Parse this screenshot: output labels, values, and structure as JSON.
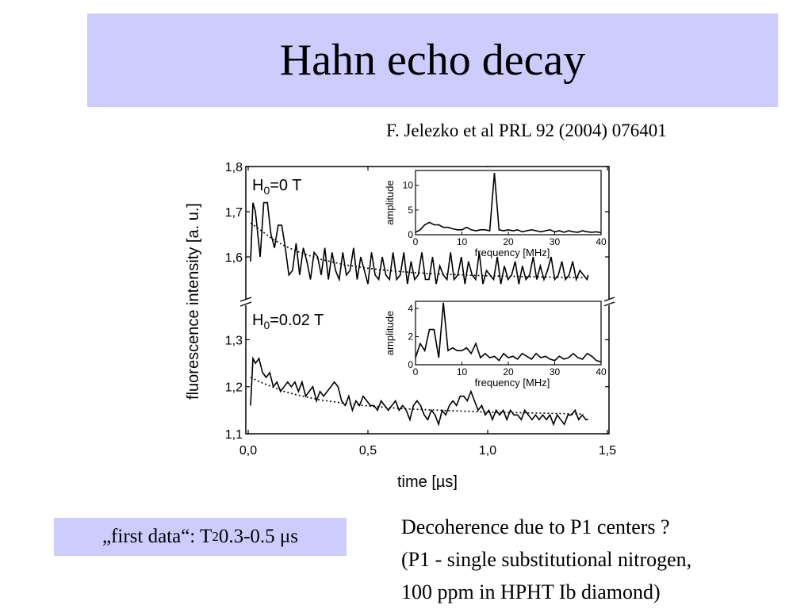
{
  "slide": {
    "title": "Hahn echo decay",
    "citation": "F. Jelezko et al PRL 92 (2004) 076401",
    "note": {
      "prefix": "„first data“: T",
      "sub": "2",
      "suffix": " 0.3-0.5 μs"
    },
    "decoherence_lines": [
      "Decoherence due to P1 centers ?",
      "(P1 - single substitutional nitrogen,",
      "100 ppm in HPHT Ib diamond)"
    ]
  },
  "chart_data": [
    {
      "type": "line",
      "panel": "upper",
      "label": "H0=0 T",
      "label_main": "H",
      "label_sub": "0",
      "label_rest": "=0 T",
      "xlabel": "time [µs]",
      "ylabel": "fluorescence intensity [a. u.]",
      "xlim": [
        0,
        1.5
      ],
      "ylim": [
        1.5,
        1.8
      ],
      "xticks": [
        "0,0",
        "0,5",
        "1,0",
        "1,5"
      ],
      "yticks": [
        "1,6",
        "1,7",
        "1,8"
      ],
      "series": [
        {
          "style": "solid",
          "x": [
            0.01,
            0.02,
            0.03,
            0.05,
            0.065,
            0.08,
            0.095,
            0.11,
            0.125,
            0.14,
            0.155,
            0.17,
            0.185,
            0.2,
            0.215,
            0.23,
            0.245,
            0.26,
            0.275,
            0.29,
            0.305,
            0.32,
            0.335,
            0.35,
            0.365,
            0.38,
            0.395,
            0.41,
            0.425,
            0.44,
            0.455,
            0.47,
            0.485,
            0.5,
            0.515,
            0.53,
            0.545,
            0.56,
            0.575,
            0.59,
            0.605,
            0.62,
            0.635,
            0.65,
            0.665,
            0.68,
            0.695,
            0.71,
            0.725,
            0.74,
            0.755,
            0.77,
            0.785,
            0.8,
            0.815,
            0.83,
            0.845,
            0.86,
            0.875,
            0.89,
            0.905,
            0.92,
            0.935,
            0.95,
            0.965,
            0.98,
            0.995,
            1.01,
            1.025,
            1.04,
            1.055,
            1.07,
            1.085,
            1.1,
            1.115,
            1.13,
            1.145,
            1.16,
            1.175,
            1.19,
            1.205,
            1.22,
            1.235,
            1.25,
            1.265,
            1.28,
            1.295,
            1.31,
            1.325,
            1.34,
            1.355,
            1.37,
            1.385,
            1.4,
            1.415,
            1.42
          ],
          "y": [
            1.59,
            1.72,
            1.7,
            1.6,
            1.72,
            1.72,
            1.65,
            1.62,
            1.67,
            1.67,
            1.62,
            1.56,
            1.57,
            1.63,
            1.56,
            1.62,
            1.59,
            1.55,
            1.61,
            1.6,
            1.56,
            1.62,
            1.55,
            1.61,
            1.57,
            1.55,
            1.61,
            1.56,
            1.57,
            1.62,
            1.55,
            1.6,
            1.57,
            1.54,
            1.61,
            1.56,
            1.55,
            1.6,
            1.56,
            1.55,
            1.61,
            1.55,
            1.56,
            1.61,
            1.54,
            1.59,
            1.55,
            1.56,
            1.61,
            1.55,
            1.55,
            1.6,
            1.54,
            1.58,
            1.56,
            1.55,
            1.61,
            1.55,
            1.56,
            1.6,
            1.54,
            1.59,
            1.56,
            1.55,
            1.61,
            1.54,
            1.57,
            1.56,
            1.55,
            1.6,
            1.54,
            1.58,
            1.55,
            1.56,
            1.59,
            1.54,
            1.58,
            1.55,
            1.56,
            1.6,
            1.55,
            1.58,
            1.55,
            1.57,
            1.6,
            1.55,
            1.56,
            1.59,
            1.55,
            1.56,
            1.59,
            1.55,
            1.57,
            1.56,
            1.55,
            1.56
          ]
        },
        {
          "style": "dotted",
          "x": [
            0.01,
            0.05,
            0.1,
            0.15,
            0.2,
            0.3,
            0.4,
            0.5,
            0.6,
            0.7,
            0.8,
            0.9,
            1.0,
            1.1,
            1.2,
            1.3,
            1.4
          ],
          "y": [
            1.675,
            1.66,
            1.64,
            1.625,
            1.613,
            1.595,
            1.583,
            1.575,
            1.569,
            1.565,
            1.562,
            1.56,
            1.558,
            1.557,
            1.556,
            1.555,
            1.555
          ]
        }
      ]
    },
    {
      "type": "line",
      "panel": "lower",
      "label": "H0=0.02 T",
      "label_main": "H",
      "label_sub": "0",
      "label_rest": "=0.02 T",
      "xlim": [
        0,
        1.5
      ],
      "ylim": [
        1.1,
        1.38
      ],
      "yticks": [
        "1,1",
        "1,2",
        "1,3"
      ],
      "series": [
        {
          "style": "solid",
          "x": [
            0.01,
            0.02,
            0.03,
            0.045,
            0.06,
            0.075,
            0.09,
            0.105,
            0.12,
            0.135,
            0.15,
            0.165,
            0.18,
            0.195,
            0.21,
            0.225,
            0.24,
            0.255,
            0.27,
            0.285,
            0.3,
            0.315,
            0.33,
            0.345,
            0.36,
            0.375,
            0.39,
            0.405,
            0.42,
            0.435,
            0.45,
            0.465,
            0.48,
            0.495,
            0.51,
            0.525,
            0.54,
            0.555,
            0.57,
            0.585,
            0.6,
            0.615,
            0.63,
            0.645,
            0.66,
            0.675,
            0.69,
            0.705,
            0.72,
            0.735,
            0.75,
            0.765,
            0.78,
            0.795,
            0.81,
            0.825,
            0.84,
            0.855,
            0.87,
            0.885,
            0.9,
            0.915,
            0.93,
            0.945,
            0.96,
            0.975,
            0.99,
            1.005,
            1.02,
            1.035,
            1.05,
            1.065,
            1.08,
            1.095,
            1.11,
            1.125,
            1.14,
            1.155,
            1.17,
            1.185,
            1.2,
            1.215,
            1.23,
            1.245,
            1.26,
            1.275,
            1.29,
            1.305,
            1.32,
            1.335,
            1.35,
            1.365,
            1.38,
            1.395,
            1.41,
            1.42
          ],
          "y": [
            1.16,
            1.26,
            1.25,
            1.26,
            1.23,
            1.22,
            1.23,
            1.2,
            1.21,
            1.19,
            1.2,
            1.21,
            1.2,
            1.21,
            1.19,
            1.21,
            1.18,
            1.19,
            1.2,
            1.17,
            1.19,
            1.18,
            1.19,
            1.2,
            1.21,
            1.2,
            1.17,
            1.16,
            1.18,
            1.15,
            1.17,
            1.16,
            1.18,
            1.17,
            1.16,
            1.16,
            1.15,
            1.17,
            1.16,
            1.15,
            1.16,
            1.17,
            1.15,
            1.16,
            1.15,
            1.13,
            1.16,
            1.17,
            1.16,
            1.14,
            1.13,
            1.15,
            1.14,
            1.12,
            1.15,
            1.14,
            1.16,
            1.17,
            1.16,
            1.18,
            1.18,
            1.17,
            1.19,
            1.17,
            1.15,
            1.16,
            1.14,
            1.15,
            1.13,
            1.15,
            1.14,
            1.15,
            1.13,
            1.15,
            1.14,
            1.14,
            1.13,
            1.15,
            1.14,
            1.13,
            1.14,
            1.13,
            1.14,
            1.13,
            1.14,
            1.12,
            1.14,
            1.13,
            1.12,
            1.14,
            1.14,
            1.15,
            1.13,
            1.14,
            1.13,
            1.13
          ]
        },
        {
          "style": "dotted",
          "x": [
            0.01,
            0.05,
            0.1,
            0.15,
            0.2,
            0.3,
            0.4,
            0.5,
            0.6,
            0.7,
            0.8,
            0.9,
            1.0,
            1.1,
            1.2,
            1.3,
            1.4
          ],
          "y": [
            1.22,
            1.21,
            1.2,
            1.19,
            1.183,
            1.172,
            1.165,
            1.159,
            1.155,
            1.152,
            1.15,
            1.148,
            1.146,
            1.145,
            1.144,
            1.143,
            1.142
          ]
        }
      ]
    },
    {
      "type": "line",
      "panel": "inset-upper",
      "xlabel": "frequency [MHz]",
      "ylabel": "amplitude",
      "xlim": [
        0,
        40
      ],
      "ylim": [
        0,
        13
      ],
      "xticks": [
        "0",
        "10",
        "20",
        "30",
        "40"
      ],
      "yticks": [
        "0",
        "5",
        "10"
      ],
      "series": [
        {
          "style": "solid",
          "x": [
            0,
            1,
            2,
            3,
            4,
            5,
            6,
            7,
            8,
            9,
            10,
            11,
            12,
            13,
            14,
            15,
            16,
            17,
            18,
            19,
            20,
            21,
            22,
            23,
            24,
            25,
            26,
            27,
            28,
            29,
            30,
            31,
            32,
            33,
            34,
            35,
            36,
            37,
            38,
            39,
            40
          ],
          "y": [
            0.5,
            1,
            2,
            2.5,
            2,
            2,
            1.5,
            1.5,
            1.2,
            1,
            1,
            1.5,
            1,
            0.8,
            1,
            1,
            0.8,
            12.5,
            1,
            0.8,
            1,
            0.8,
            1,
            0.6,
            0.8,
            1,
            0.8,
            0.6,
            0.8,
            1,
            0.6,
            0.8,
            0.5,
            0.8,
            0.6,
            0.5,
            0.8,
            0.6,
            0.5,
            0.6,
            0.4
          ]
        }
      ]
    },
    {
      "type": "line",
      "panel": "inset-lower",
      "xlabel": "frequency [MHz]",
      "ylabel": "amplitude",
      "xlim": [
        0,
        40
      ],
      "ylim": [
        0,
        4.5
      ],
      "xticks": [
        "0",
        "10",
        "20",
        "30",
        "40"
      ],
      "yticks": [
        "0",
        "2",
        "4"
      ],
      "series": [
        {
          "style": "solid",
          "x": [
            0,
            1,
            2,
            3,
            4,
            5,
            6,
            7,
            8,
            9,
            10,
            11,
            12,
            13,
            14,
            15,
            16,
            17,
            18,
            19,
            20,
            21,
            22,
            23,
            24,
            25,
            26,
            27,
            28,
            29,
            30,
            31,
            32,
            33,
            34,
            35,
            36,
            37,
            38,
            39,
            40
          ],
          "y": [
            0.5,
            1.5,
            1,
            2.5,
            2.5,
            0.5,
            4.4,
            1,
            1.2,
            1,
            1,
            1.2,
            0.8,
            1.5,
            0.5,
            0.8,
            0.5,
            0.6,
            0.3,
            0.8,
            0.5,
            0.6,
            0.4,
            0.8,
            0.6,
            0.4,
            0.8,
            0.5,
            0.6,
            0.4,
            0.3,
            0.6,
            0.4,
            0.5,
            0.8,
            0.5,
            0.4,
            0.8,
            0.6,
            0.3,
            0.2
          ]
        }
      ]
    }
  ]
}
